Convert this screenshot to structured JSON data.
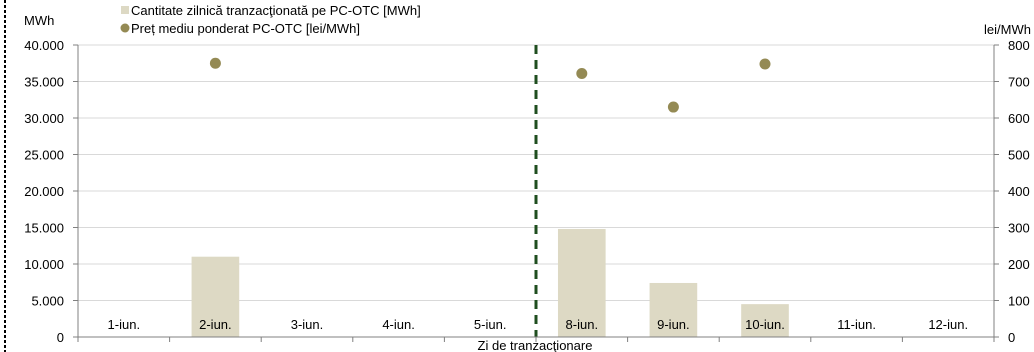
{
  "chart_data": {
    "type": "bar",
    "categories": [
      "1-iun.",
      "2-iun.",
      "3-iun.",
      "4-iun.",
      "5-iun.",
      "8-iun.",
      "9-iun.",
      "10-iun.",
      "11-iun.",
      "12-iun."
    ],
    "xlabel": "Zi de tranzacţionare",
    "y_left": {
      "unit": "MWh",
      "ylim": [
        0,
        40000
      ],
      "ticks": [
        "0",
        "5.000",
        "10.000",
        "15.000",
        "20.000",
        "25.000",
        "30.000",
        "35.000",
        "40.000"
      ]
    },
    "y_right": {
      "unit": "lei/MWh",
      "ylim": [
        0,
        800
      ],
      "ticks": [
        "0",
        "100",
        "200",
        "300",
        "400",
        "500",
        "600",
        "700",
        "800"
      ]
    },
    "series": [
      {
        "name": "Cantitate zilnică tranzacţionată pe PC-OTC [MWh]",
        "type": "bar",
        "axis": "left",
        "color": "#ddd9c4",
        "values": [
          null,
          11000,
          null,
          null,
          null,
          14800,
          7400,
          4500,
          null,
          null
        ]
      },
      {
        "name": "Preț mediu ponderat PC-OTC [lei/MWh]",
        "type": "scatter",
        "axis": "right",
        "color": "#948a54",
        "values": [
          null,
          750,
          null,
          null,
          null,
          722,
          630,
          748,
          null,
          null
        ]
      }
    ],
    "separator_after_category": "5-iun.",
    "separator_color": "#1f4e1f",
    "grid": true
  }
}
